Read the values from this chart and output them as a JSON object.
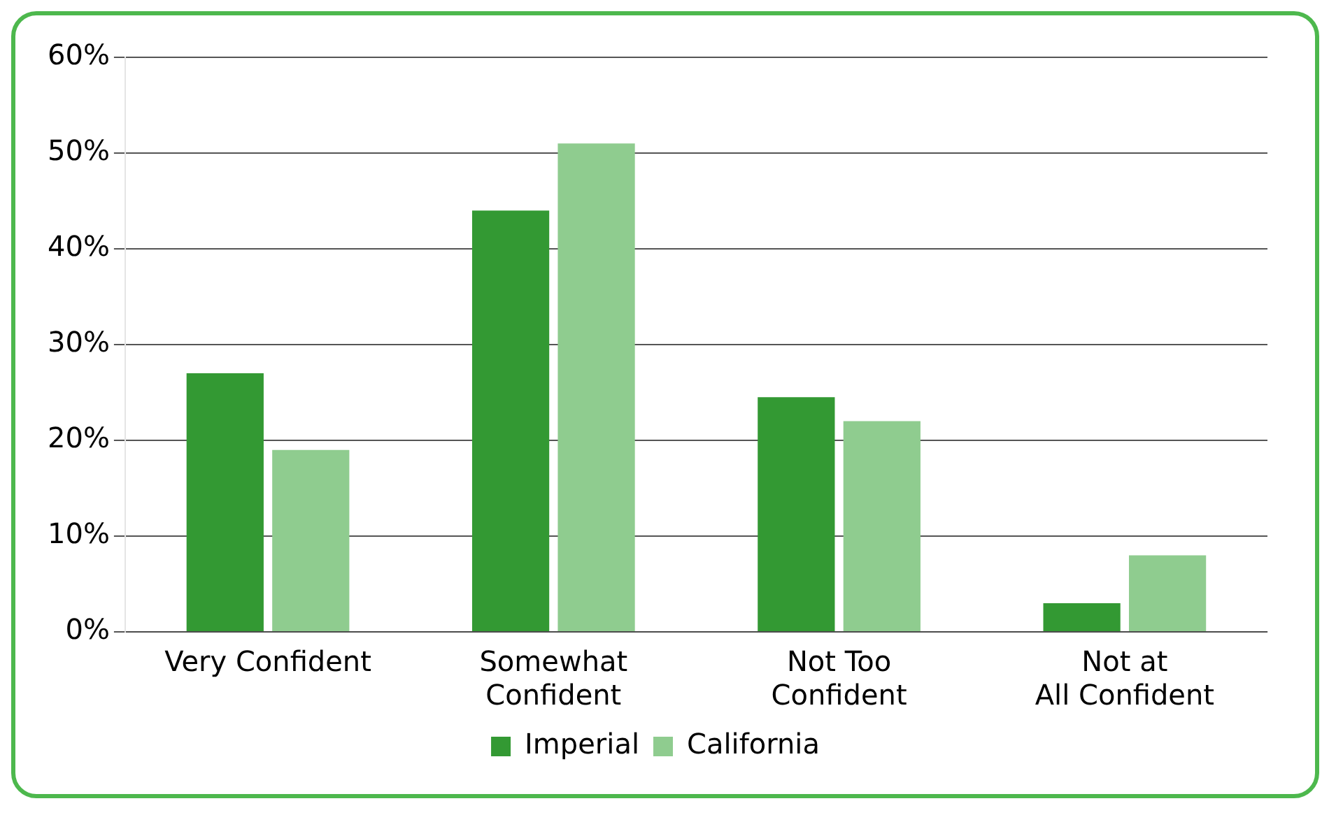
{
  "chart_data": {
    "type": "bar",
    "categories": [
      "Very Confident",
      "Somewhat Confident",
      "Not Too Confident",
      "Not at All Confident"
    ],
    "series": [
      {
        "name": "Imperial",
        "color": "#339933",
        "values": [
          27,
          44,
          24.5,
          3
        ]
      },
      {
        "name": "California",
        "color": "#8fcc8f",
        "values": [
          19,
          51,
          22,
          8
        ]
      }
    ],
    "ylim": [
      0,
      60
    ],
    "yticks": [
      {
        "value": 0,
        "label": "0%"
      },
      {
        "value": 10,
        "label": "10%"
      },
      {
        "value": 20,
        "label": "20%"
      },
      {
        "value": 30,
        "label": "30%"
      },
      {
        "value": 40,
        "label": "40%"
      },
      {
        "value": 50,
        "label": "50%"
      },
      {
        "value": 60,
        "label": "60%"
      }
    ],
    "grid": "y",
    "legend": "bottom"
  }
}
